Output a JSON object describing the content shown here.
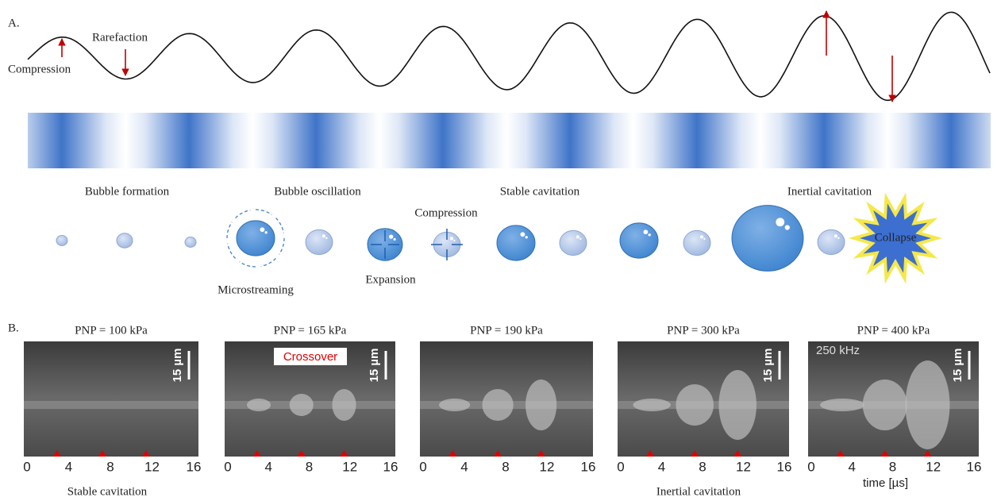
{
  "panel_a": {
    "label": "A.",
    "wave_labels": {
      "compression": "Compression",
      "rarefaction": "Rarefaction"
    },
    "stages": [
      "Bubble formation",
      "Bubble oscillation",
      "Stable cavitation",
      "Inertial cavitation"
    ],
    "bubble_labels": {
      "compression": "Compression",
      "microstreaming": "Microstreaming",
      "expansion": "Expansion",
      "collapse": "Collapse"
    }
  },
  "panel_b": {
    "label": "B.",
    "panels": [
      {
        "title": "PNP = 100 kPa",
        "scale": "15 µm",
        "ticks": [
          0,
          4,
          8,
          12,
          16
        ]
      },
      {
        "title": "PNP = 165 kPa",
        "scale": "15 µm",
        "note": "Crossover",
        "ticks": [
          0,
          4,
          8,
          12,
          16
        ]
      },
      {
        "title": "PNP = 190 kPa",
        "ticks": [
          0,
          4,
          8,
          12,
          16
        ]
      },
      {
        "title": "PNP = 300 kPa",
        "scale": "15 µm",
        "ticks": [
          0,
          4,
          8,
          12,
          16
        ]
      },
      {
        "title": "PNP = 400 kPa",
        "scale": "15 µm",
        "note": "250 kHz",
        "ticks": [
          0,
          4,
          8,
          12,
          16
        ],
        "axis_label": "time [µs]"
      }
    ],
    "captions": [
      "Stable cavitation",
      "Inertial cavitation"
    ]
  }
}
